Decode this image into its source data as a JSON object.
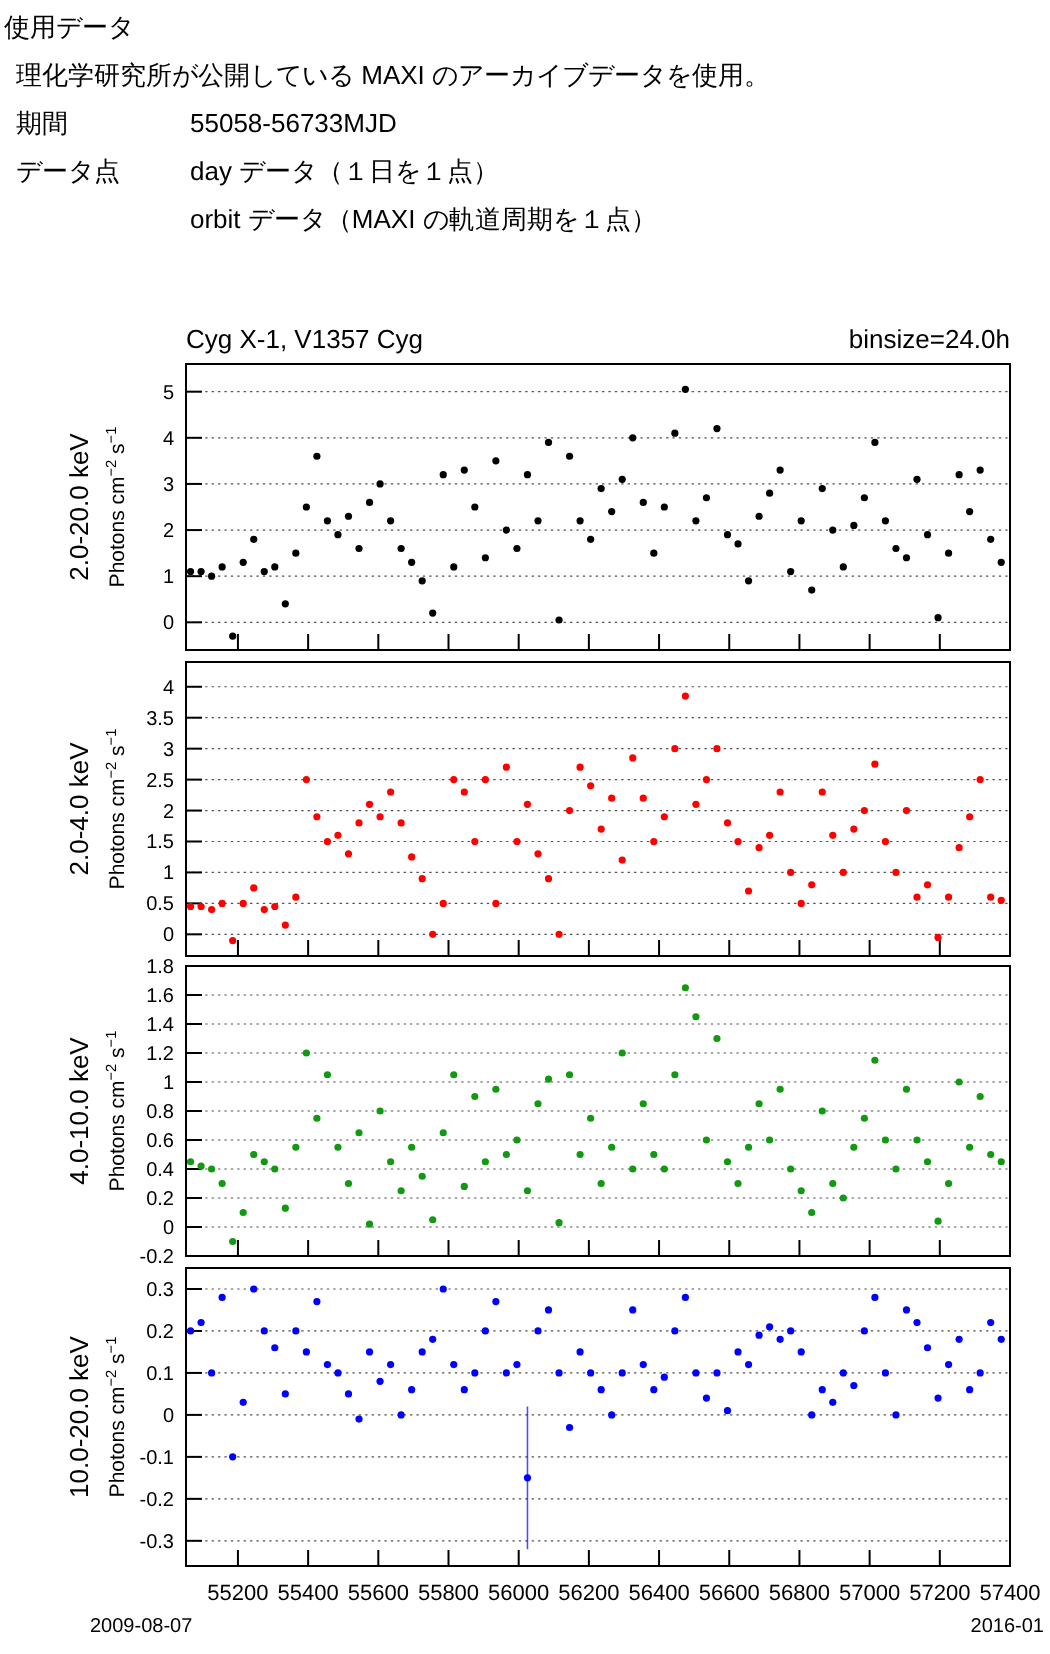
{
  "chart_data": [
    {
      "type": "scatter",
      "title": "Cyg X-1, V1357 Cyg",
      "subtitle": "binsize=24.0h",
      "ylabel": "2.0-20.0 keV\nPhotons cm$^{−2}$ s$^{−1}$",
      "annotations": [
        "使用データ",
        "理化学研究所が公開している MAXI のアーカイブデータを使用。",
        "期間",
        "55058-56733MJD",
        "データ点",
        "day データ（１日を１点）",
        "orbit データ（MAXI の軌道周期を１点）"
      ],
      "x": [
        55065,
        55095,
        55125,
        55155,
        55185,
        55215,
        55245,
        55275,
        55305,
        55335,
        55365,
        55395,
        55425,
        55455,
        55485,
        55515,
        55545,
        55575,
        55605,
        55635,
        55665,
        55695,
        55725,
        55755,
        55785,
        55815,
        55845,
        55875,
        55905,
        55935,
        55965,
        55995,
        56025,
        56055,
        56085,
        56115,
        56145,
        56175,
        56205,
        56235,
        56265,
        56295,
        56325,
        56355,
        56385,
        56415,
        56445,
        56475,
        56505,
        56535,
        56565,
        56595,
        56625,
        56655,
        56685,
        56715,
        56745,
        56775,
        56805,
        56835,
        56865,
        56895,
        56925,
        56955,
        56985,
        57015,
        57045,
        57075,
        57105,
        57135,
        57165,
        57195,
        57225,
        57255,
        57285,
        57315,
        57345,
        57375
      ],
      "xlim": [
        55052,
        57400
      ],
      "xticks": [
        55200,
        55400,
        55600,
        55800,
        56000,
        56200,
        56400,
        56600,
        56800,
        57000,
        57200,
        57400
      ],
      "ylim": [
        -0.6,
        5.6
      ],
      "yticks": [
        0,
        1,
        2,
        3,
        4,
        5
      ],
      "grid": "y",
      "tick_labels": "y",
      "marker": "circle",
      "series": [
        {
          "color": "#000000",
          "values": [
            1.1,
            1.1,
            1.0,
            1.2,
            -0.3,
            1.3,
            1.8,
            1.1,
            1.2,
            0.4,
            1.5,
            2.5,
            3.6,
            2.2,
            1.9,
            2.3,
            1.6,
            2.6,
            3.0,
            2.2,
            1.6,
            1.3,
            0.9,
            0.2,
            3.2,
            1.2,
            3.3,
            2.5,
            1.4,
            3.5,
            2.0,
            1.6,
            3.2,
            2.2,
            3.9,
            0.05,
            3.6,
            2.2,
            1.8,
            2.9,
            2.4,
            3.1,
            4.0,
            2.6,
            1.5,
            2.5,
            4.1,
            5.05,
            2.2,
            2.7,
            4.2,
            1.9,
            1.7,
            0.9,
            2.3,
            2.8,
            3.3,
            1.1,
            2.2,
            0.7,
            2.9,
            2.0,
            1.2,
            2.1,
            2.7,
            3.9,
            2.2,
            1.6,
            1.4,
            3.1,
            1.9,
            0.1,
            1.5,
            3.2,
            2.4,
            3.3,
            1.8,
            1.3
          ]
        }
      ]
    },
    {
      "type": "scatter",
      "ylabel": "2.0-4.0 keV\nPhotons cm$^{−2}$ s$^{−1}$",
      "x": [
        55065,
        55095,
        55125,
        55155,
        55185,
        55215,
        55245,
        55275,
        55305,
        55335,
        55365,
        55395,
        55425,
        55455,
        55485,
        55515,
        55545,
        55575,
        55605,
        55635,
        55665,
        55695,
        55725,
        55755,
        55785,
        55815,
        55845,
        55875,
        55905,
        55935,
        55965,
        55995,
        56025,
        56055,
        56085,
        56115,
        56145,
        56175,
        56205,
        56235,
        56265,
        56295,
        56325,
        56355,
        56385,
        56415,
        56445,
        56475,
        56505,
        56535,
        56565,
        56595,
        56625,
        56655,
        56685,
        56715,
        56745,
        56775,
        56805,
        56835,
        56865,
        56895,
        56925,
        56955,
        56985,
        57015,
        57045,
        57075,
        57105,
        57135,
        57165,
        57195,
        57225,
        57255,
        57285,
        57315,
        57345,
        57375
      ],
      "xlim": [
        55052,
        57400
      ],
      "xticks": [
        55200,
        55400,
        55600,
        55800,
        56000,
        56200,
        56400,
        56600,
        56800,
        57000,
        57200,
        57400
      ],
      "ylim": [
        -0.35,
        4.4
      ],
      "yticks": [
        0,
        0.5,
        1,
        1.5,
        2,
        2.5,
        3,
        3.5,
        4
      ],
      "grid": "y",
      "tick_labels": "y",
      "marker": "circle",
      "series": [
        {
          "color": "#ff0000",
          "values": [
            0.45,
            0.45,
            0.4,
            0.5,
            -0.1,
            0.5,
            0.75,
            0.4,
            0.45,
            0.15,
            0.6,
            2.5,
            1.9,
            1.5,
            1.6,
            1.3,
            1.8,
            2.1,
            1.9,
            2.3,
            1.8,
            1.25,
            0.9,
            0.0,
            0.5,
            2.5,
            2.3,
            1.5,
            2.5,
            0.5,
            2.7,
            1.5,
            2.1,
            1.3,
            0.9,
            0.0,
            2.0,
            2.7,
            2.4,
            1.7,
            2.2,
            1.2,
            2.85,
            2.2,
            1.5,
            1.9,
            3.0,
            3.85,
            2.1,
            2.5,
            3.0,
            1.8,
            1.5,
            0.7,
            1.4,
            1.6,
            2.3,
            1.0,
            0.5,
            0.8,
            2.3,
            1.6,
            1.0,
            1.7,
            2.0,
            2.75,
            1.5,
            1.0,
            2.0,
            0.6,
            0.8,
            -0.05,
            0.6,
            1.4,
            1.9,
            2.5,
            0.6,
            0.55
          ]
        }
      ]
    },
    {
      "type": "scatter",
      "ylabel": "4.0-10.0 keV\nPhotons cm$^{−2}$ s$^{−1}$",
      "x": [
        55065,
        55095,
        55125,
        55155,
        55185,
        55215,
        55245,
        55275,
        55305,
        55335,
        55365,
        55395,
        55425,
        55455,
        55485,
        55515,
        55545,
        55575,
        55605,
        55635,
        55665,
        55695,
        55725,
        55755,
        55785,
        55815,
        55845,
        55875,
        55905,
        55935,
        55965,
        55995,
        56025,
        56055,
        56085,
        56115,
        56145,
        56175,
        56205,
        56235,
        56265,
        56295,
        56325,
        56355,
        56385,
        56415,
        56445,
        56475,
        56505,
        56535,
        56565,
        56595,
        56625,
        56655,
        56685,
        56715,
        56745,
        56775,
        56805,
        56835,
        56865,
        56895,
        56925,
        56955,
        56985,
        57015,
        57045,
        57075,
        57105,
        57135,
        57165,
        57195,
        57225,
        57255,
        57285,
        57315,
        57345,
        57375
      ],
      "xlim": [
        55052,
        57400
      ],
      "xticks": [
        55200,
        55400,
        55600,
        55800,
        56000,
        56200,
        56400,
        56600,
        56800,
        57000,
        57200,
        57400
      ],
      "ylim": [
        -0.2,
        1.8
      ],
      "yticks": [
        -0.2,
        0,
        0.2,
        0.4,
        0.6,
        0.8,
        1,
        1.2,
        1.4,
        1.6,
        1.8
      ],
      "grid": "y",
      "tick_labels": "y",
      "marker": "circle",
      "series": [
        {
          "color": "#119911",
          "values": [
            0.45,
            0.42,
            0.4,
            0.3,
            -0.1,
            0.1,
            0.5,
            0.45,
            0.4,
            0.13,
            0.55,
            1.2,
            0.75,
            1.05,
            0.55,
            0.3,
            0.65,
            0.02,
            0.8,
            0.45,
            0.25,
            0.55,
            0.35,
            0.05,
            0.65,
            1.05,
            0.28,
            0.9,
            0.45,
            0.95,
            0.5,
            0.6,
            0.25,
            0.85,
            1.02,
            0.03,
            1.05,
            0.5,
            0.75,
            0.3,
            0.55,
            1.2,
            0.4,
            0.85,
            0.5,
            0.4,
            1.05,
            1.65,
            1.45,
            0.6,
            1.3,
            0.45,
            0.3,
            0.55,
            0.85,
            0.6,
            0.95,
            0.4,
            0.25,
            0.1,
            0.8,
            0.3,
            0.2,
            0.55,
            0.75,
            1.15,
            0.6,
            0.4,
            0.95,
            0.6,
            0.45,
            0.04,
            0.3,
            1.0,
            0.55,
            0.9,
            0.5,
            0.45
          ]
        }
      ]
    },
    {
      "type": "scatter",
      "ylabel": "10.0-20.0 keV\nPhotons cm$^{−2}$ s$^{−1}$",
      "annotations": [
        "2009-08-07",
        "2016-01"
      ],
      "x": [
        55065,
        55095,
        55125,
        55155,
        55185,
        55215,
        55245,
        55275,
        55305,
        55335,
        55365,
        55395,
        55425,
        55455,
        55485,
        55515,
        55545,
        55575,
        55605,
        55635,
        55665,
        55695,
        55725,
        55755,
        55785,
        55815,
        55845,
        55875,
        55905,
        55935,
        55965,
        55995,
        56025,
        56055,
        56085,
        56115,
        56145,
        56175,
        56205,
        56235,
        56265,
        56295,
        56325,
        56355,
        56385,
        56415,
        56445,
        56475,
        56505,
        56535,
        56565,
        56595,
        56625,
        56655,
        56685,
        56715,
        56745,
        56775,
        56805,
        56835,
        56865,
        56895,
        56925,
        56955,
        56985,
        57015,
        57045,
        57075,
        57105,
        57135,
        57165,
        57195,
        57225,
        57255,
        57285,
        57315,
        57345,
        57375
      ],
      "xlim": [
        55052,
        57400
      ],
      "xticks": [
        55200,
        55400,
        55600,
        55800,
        56000,
        56200,
        56400,
        56600,
        56800,
        57000,
        57200,
        57400
      ],
      "ylim": [
        -0.36,
        0.35
      ],
      "yticks": [
        -0.3,
        -0.2,
        -0.1,
        0,
        0.1,
        0.2,
        0.3
      ],
      "grid": "y",
      "marker": "circle",
      "series": [
        {
          "color": "#0000ff",
          "values": [
            0.2,
            0.22,
            0.1,
            0.28,
            -0.1,
            0.03,
            0.3,
            0.2,
            0.16,
            0.05,
            0.2,
            0.15,
            0.27,
            0.12,
            0.1,
            0.05,
            -0.01,
            0.15,
            0.08,
            0.12,
            0.0,
            0.06,
            0.15,
            0.18,
            0.3,
            0.12,
            0.06,
            0.1,
            0.2,
            0.27,
            0.1,
            0.12,
            -0.15,
            0.2,
            0.25,
            0.1,
            -0.03,
            0.15,
            0.1,
            0.06,
            0.0,
            0.1,
            0.25,
            0.12,
            0.06,
            0.09,
            0.2,
            0.28,
            0.1,
            0.04,
            0.1,
            0.01,
            0.15,
            0.12,
            0.19,
            0.21,
            0.18,
            0.2,
            0.15,
            0.0,
            0.06,
            0.03,
            0.1,
            0.07,
            0.2,
            0.28,
            0.1,
            0.0,
            0.25,
            0.22,
            0.16,
            0.04,
            0.12,
            0.18,
            0.06,
            0.1,
            0.22,
            0.18
          ],
          "errors": [
            null,
            null,
            null,
            null,
            null,
            null,
            null,
            null,
            null,
            null,
            null,
            null,
            null,
            null,
            null,
            null,
            null,
            null,
            null,
            null,
            null,
            null,
            null,
            null,
            null,
            null,
            null,
            null,
            null,
            null,
            null,
            null,
            0.17,
            null,
            null,
            null,
            null,
            null,
            null,
            null,
            null,
            null,
            null,
            null,
            null,
            null,
            null,
            null,
            null,
            null,
            null,
            null,
            null,
            null,
            null,
            null,
            null,
            null,
            null,
            null,
            null,
            null,
            null,
            null,
            null,
            null,
            null,
            null,
            null,
            null,
            null,
            null,
            null,
            null,
            null,
            null,
            null,
            null
          ]
        }
      ]
    }
  ]
}
